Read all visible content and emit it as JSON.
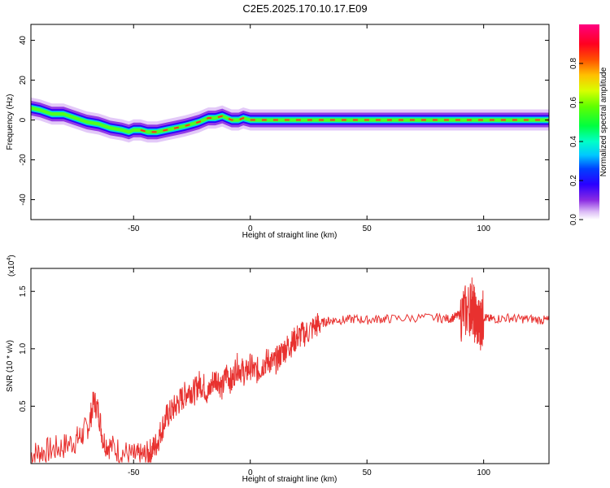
{
  "figure": {
    "title": "C2E5.2025.170.10.17.E09"
  },
  "chart_data": [
    {
      "type": "heatmap",
      "xlabel": "Height of straight line (km)",
      "ylabel": "Frequency (Hz)",
      "xlim": [
        -94,
        128
      ],
      "ylim": [
        -50,
        48
      ],
      "xticks": [
        -50,
        0,
        50,
        100
      ],
      "yticks": [
        -40,
        -20,
        0,
        20,
        40
      ],
      "colorbar": {
        "label": "Normalized spectral amplitude",
        "range": [
          0,
          1
        ],
        "ticks": [
          0.0,
          0.2,
          0.4,
          0.6,
          0.8
        ]
      },
      "ridge": {
        "x": [
          -94,
          -90,
          -85,
          -80,
          -75,
          -70,
          -65,
          -60,
          -55,
          -52,
          -50,
          -47,
          -44,
          -40,
          -36,
          -32,
          -28,
          -25,
          -22,
          -20,
          -18,
          -15,
          -12,
          -10,
          -8,
          -5,
          -3,
          0,
          5,
          10,
          20,
          30,
          40,
          50,
          60,
          70,
          80,
          90,
          97,
          100,
          110,
          128
        ],
        "y": [
          6,
          5,
          3,
          3,
          1,
          -1,
          -2,
          -4,
          -5,
          -6,
          -5,
          -5,
          -6,
          -6,
          -5,
          -4,
          -3,
          -2,
          -1,
          0,
          1,
          1,
          2,
          1,
          0,
          0,
          1,
          0,
          0,
          0,
          0,
          0,
          0,
          0,
          0,
          0,
          0,
          0,
          0,
          0,
          0,
          0
        ]
      }
    },
    {
      "type": "line",
      "xlabel": "Height of straight line (km)",
      "ylabel": "SNR (10 * v/v)",
      "y_multiplier": "(x10",
      "y_multiplier_exp": "4",
      "y_multiplier_close": ")",
      "xlim": [
        -94,
        128
      ],
      "ylim": [
        0,
        1.7
      ],
      "xticks": [
        -50,
        0,
        50,
        100
      ],
      "yticks": [
        0.5,
        1.0,
        1.5
      ],
      "color": "#e8312f",
      "series": [
        {
          "x": [
            -94,
            -90,
            -85,
            -80,
            -75,
            -72,
            -69,
            -67,
            -65,
            -63,
            -60,
            -55,
            -50,
            -47,
            -44,
            -42,
            -40,
            -38,
            -36,
            -34,
            -32,
            -30,
            -28,
            -26,
            -24,
            -22,
            -20,
            -18,
            -16,
            -14,
            -12,
            -10,
            -8,
            -6,
            -4,
            -2,
            0,
            2,
            4,
            6,
            8,
            10,
            12,
            14,
            16,
            18,
            20,
            22,
            25,
            28,
            30,
            33,
            36,
            40,
            45,
            50,
            55,
            60,
            70,
            80,
            85,
            88,
            90,
            92,
            94,
            95,
            96,
            97,
            98,
            99,
            100,
            102,
            105,
            110,
            115,
            120,
            125,
            128
          ],
          "y": [
            0.08,
            0.1,
            0.12,
            0.15,
            0.2,
            0.25,
            0.35,
            0.55,
            0.45,
            0.2,
            0.15,
            0.1,
            0.06,
            0.06,
            0.08,
            0.12,
            0.18,
            0.3,
            0.4,
            0.45,
            0.5,
            0.55,
            0.6,
            0.65,
            0.62,
            0.7,
            0.68,
            0.6,
            0.72,
            0.75,
            0.65,
            0.8,
            0.7,
            0.85,
            0.82,
            0.78,
            0.85,
            0.8,
            0.82,
            0.88,
            0.9,
            0.87,
            0.92,
            0.98,
            1.02,
            1.05,
            1.1,
            1.12,
            1.15,
            1.2,
            1.22,
            1.24,
            1.25,
            1.25,
            1.26,
            1.25,
            1.26,
            1.26,
            1.27,
            1.27,
            1.26,
            1.28,
            1.3,
            1.32,
            1.35,
            1.4,
            1.3,
            1.25,
            1.2,
            1.25,
            1.28,
            1.26,
            1.26,
            1.27,
            1.26,
            1.26,
            1.25,
            1.25
          ]
        }
      ]
    }
  ]
}
